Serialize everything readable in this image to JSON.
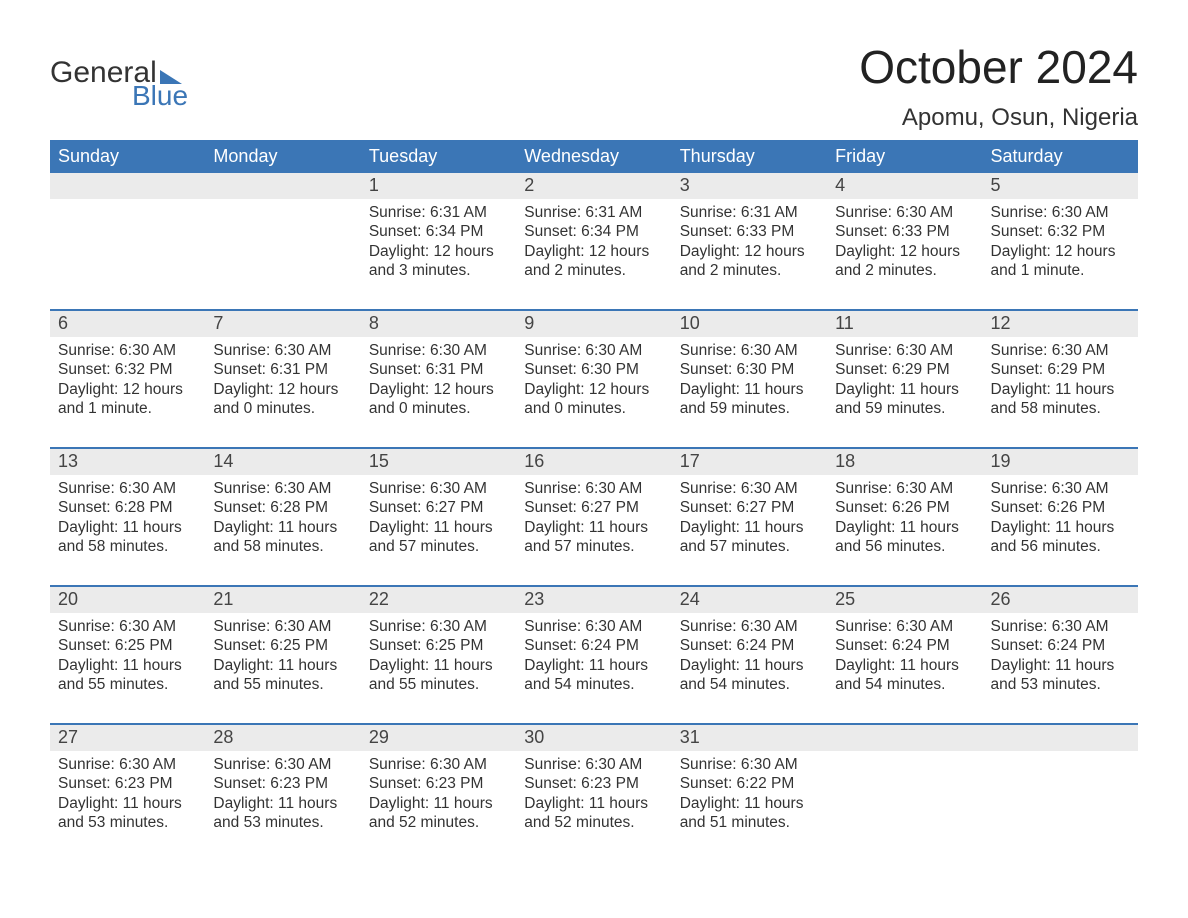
{
  "brand": {
    "word1": "General",
    "word2": "Blue"
  },
  "title": "October 2024",
  "location": "Apomu, Osun, Nigeria",
  "weekday_headers": [
    "Sunday",
    "Monday",
    "Tuesday",
    "Wednesday",
    "Thursday",
    "Friday",
    "Saturday"
  ],
  "colors": {
    "accent": "#3b76b6",
    "header_text": "#ffffff",
    "daynum_bg": "#ebebeb",
    "body_text": "#333333",
    "page_bg": "#ffffff"
  },
  "labels": {
    "sunrise_prefix": "Sunrise:",
    "sunset_prefix": "Sunset:",
    "daylight_prefix": "Daylight:"
  },
  "weeks": [
    [
      {
        "n": "",
        "sr": "",
        "ss": "",
        "dl": ""
      },
      {
        "n": "",
        "sr": "",
        "ss": "",
        "dl": ""
      },
      {
        "n": "1",
        "sr": "6:31 AM",
        "ss": "6:34 PM",
        "dl": "12 hours and 3 minutes."
      },
      {
        "n": "2",
        "sr": "6:31 AM",
        "ss": "6:34 PM",
        "dl": "12 hours and 2 minutes."
      },
      {
        "n": "3",
        "sr": "6:31 AM",
        "ss": "6:33 PM",
        "dl": "12 hours and 2 minutes."
      },
      {
        "n": "4",
        "sr": "6:30 AM",
        "ss": "6:33 PM",
        "dl": "12 hours and 2 minutes."
      },
      {
        "n": "5",
        "sr": "6:30 AM",
        "ss": "6:32 PM",
        "dl": "12 hours and 1 minute."
      }
    ],
    [
      {
        "n": "6",
        "sr": "6:30 AM",
        "ss": "6:32 PM",
        "dl": "12 hours and 1 minute."
      },
      {
        "n": "7",
        "sr": "6:30 AM",
        "ss": "6:31 PM",
        "dl": "12 hours and 0 minutes."
      },
      {
        "n": "8",
        "sr": "6:30 AM",
        "ss": "6:31 PM",
        "dl": "12 hours and 0 minutes."
      },
      {
        "n": "9",
        "sr": "6:30 AM",
        "ss": "6:30 PM",
        "dl": "12 hours and 0 minutes."
      },
      {
        "n": "10",
        "sr": "6:30 AM",
        "ss": "6:30 PM",
        "dl": "11 hours and 59 minutes."
      },
      {
        "n": "11",
        "sr": "6:30 AM",
        "ss": "6:29 PM",
        "dl": "11 hours and 59 minutes."
      },
      {
        "n": "12",
        "sr": "6:30 AM",
        "ss": "6:29 PM",
        "dl": "11 hours and 58 minutes."
      }
    ],
    [
      {
        "n": "13",
        "sr": "6:30 AM",
        "ss": "6:28 PM",
        "dl": "11 hours and 58 minutes."
      },
      {
        "n": "14",
        "sr": "6:30 AM",
        "ss": "6:28 PM",
        "dl": "11 hours and 58 minutes."
      },
      {
        "n": "15",
        "sr": "6:30 AM",
        "ss": "6:27 PM",
        "dl": "11 hours and 57 minutes."
      },
      {
        "n": "16",
        "sr": "6:30 AM",
        "ss": "6:27 PM",
        "dl": "11 hours and 57 minutes."
      },
      {
        "n": "17",
        "sr": "6:30 AM",
        "ss": "6:27 PM",
        "dl": "11 hours and 57 minutes."
      },
      {
        "n": "18",
        "sr": "6:30 AM",
        "ss": "6:26 PM",
        "dl": "11 hours and 56 minutes."
      },
      {
        "n": "19",
        "sr": "6:30 AM",
        "ss": "6:26 PM",
        "dl": "11 hours and 56 minutes."
      }
    ],
    [
      {
        "n": "20",
        "sr": "6:30 AM",
        "ss": "6:25 PM",
        "dl": "11 hours and 55 minutes."
      },
      {
        "n": "21",
        "sr": "6:30 AM",
        "ss": "6:25 PM",
        "dl": "11 hours and 55 minutes."
      },
      {
        "n": "22",
        "sr": "6:30 AM",
        "ss": "6:25 PM",
        "dl": "11 hours and 55 minutes."
      },
      {
        "n": "23",
        "sr": "6:30 AM",
        "ss": "6:24 PM",
        "dl": "11 hours and 54 minutes."
      },
      {
        "n": "24",
        "sr": "6:30 AM",
        "ss": "6:24 PM",
        "dl": "11 hours and 54 minutes."
      },
      {
        "n": "25",
        "sr": "6:30 AM",
        "ss": "6:24 PM",
        "dl": "11 hours and 54 minutes."
      },
      {
        "n": "26",
        "sr": "6:30 AM",
        "ss": "6:24 PM",
        "dl": "11 hours and 53 minutes."
      }
    ],
    [
      {
        "n": "27",
        "sr": "6:30 AM",
        "ss": "6:23 PM",
        "dl": "11 hours and 53 minutes."
      },
      {
        "n": "28",
        "sr": "6:30 AM",
        "ss": "6:23 PM",
        "dl": "11 hours and 53 minutes."
      },
      {
        "n": "29",
        "sr": "6:30 AM",
        "ss": "6:23 PM",
        "dl": "11 hours and 52 minutes."
      },
      {
        "n": "30",
        "sr": "6:30 AM",
        "ss": "6:23 PM",
        "dl": "11 hours and 52 minutes."
      },
      {
        "n": "31",
        "sr": "6:30 AM",
        "ss": "6:22 PM",
        "dl": "11 hours and 51 minutes."
      },
      {
        "n": "",
        "sr": "",
        "ss": "",
        "dl": ""
      },
      {
        "n": "",
        "sr": "",
        "ss": "",
        "dl": ""
      }
    ]
  ]
}
